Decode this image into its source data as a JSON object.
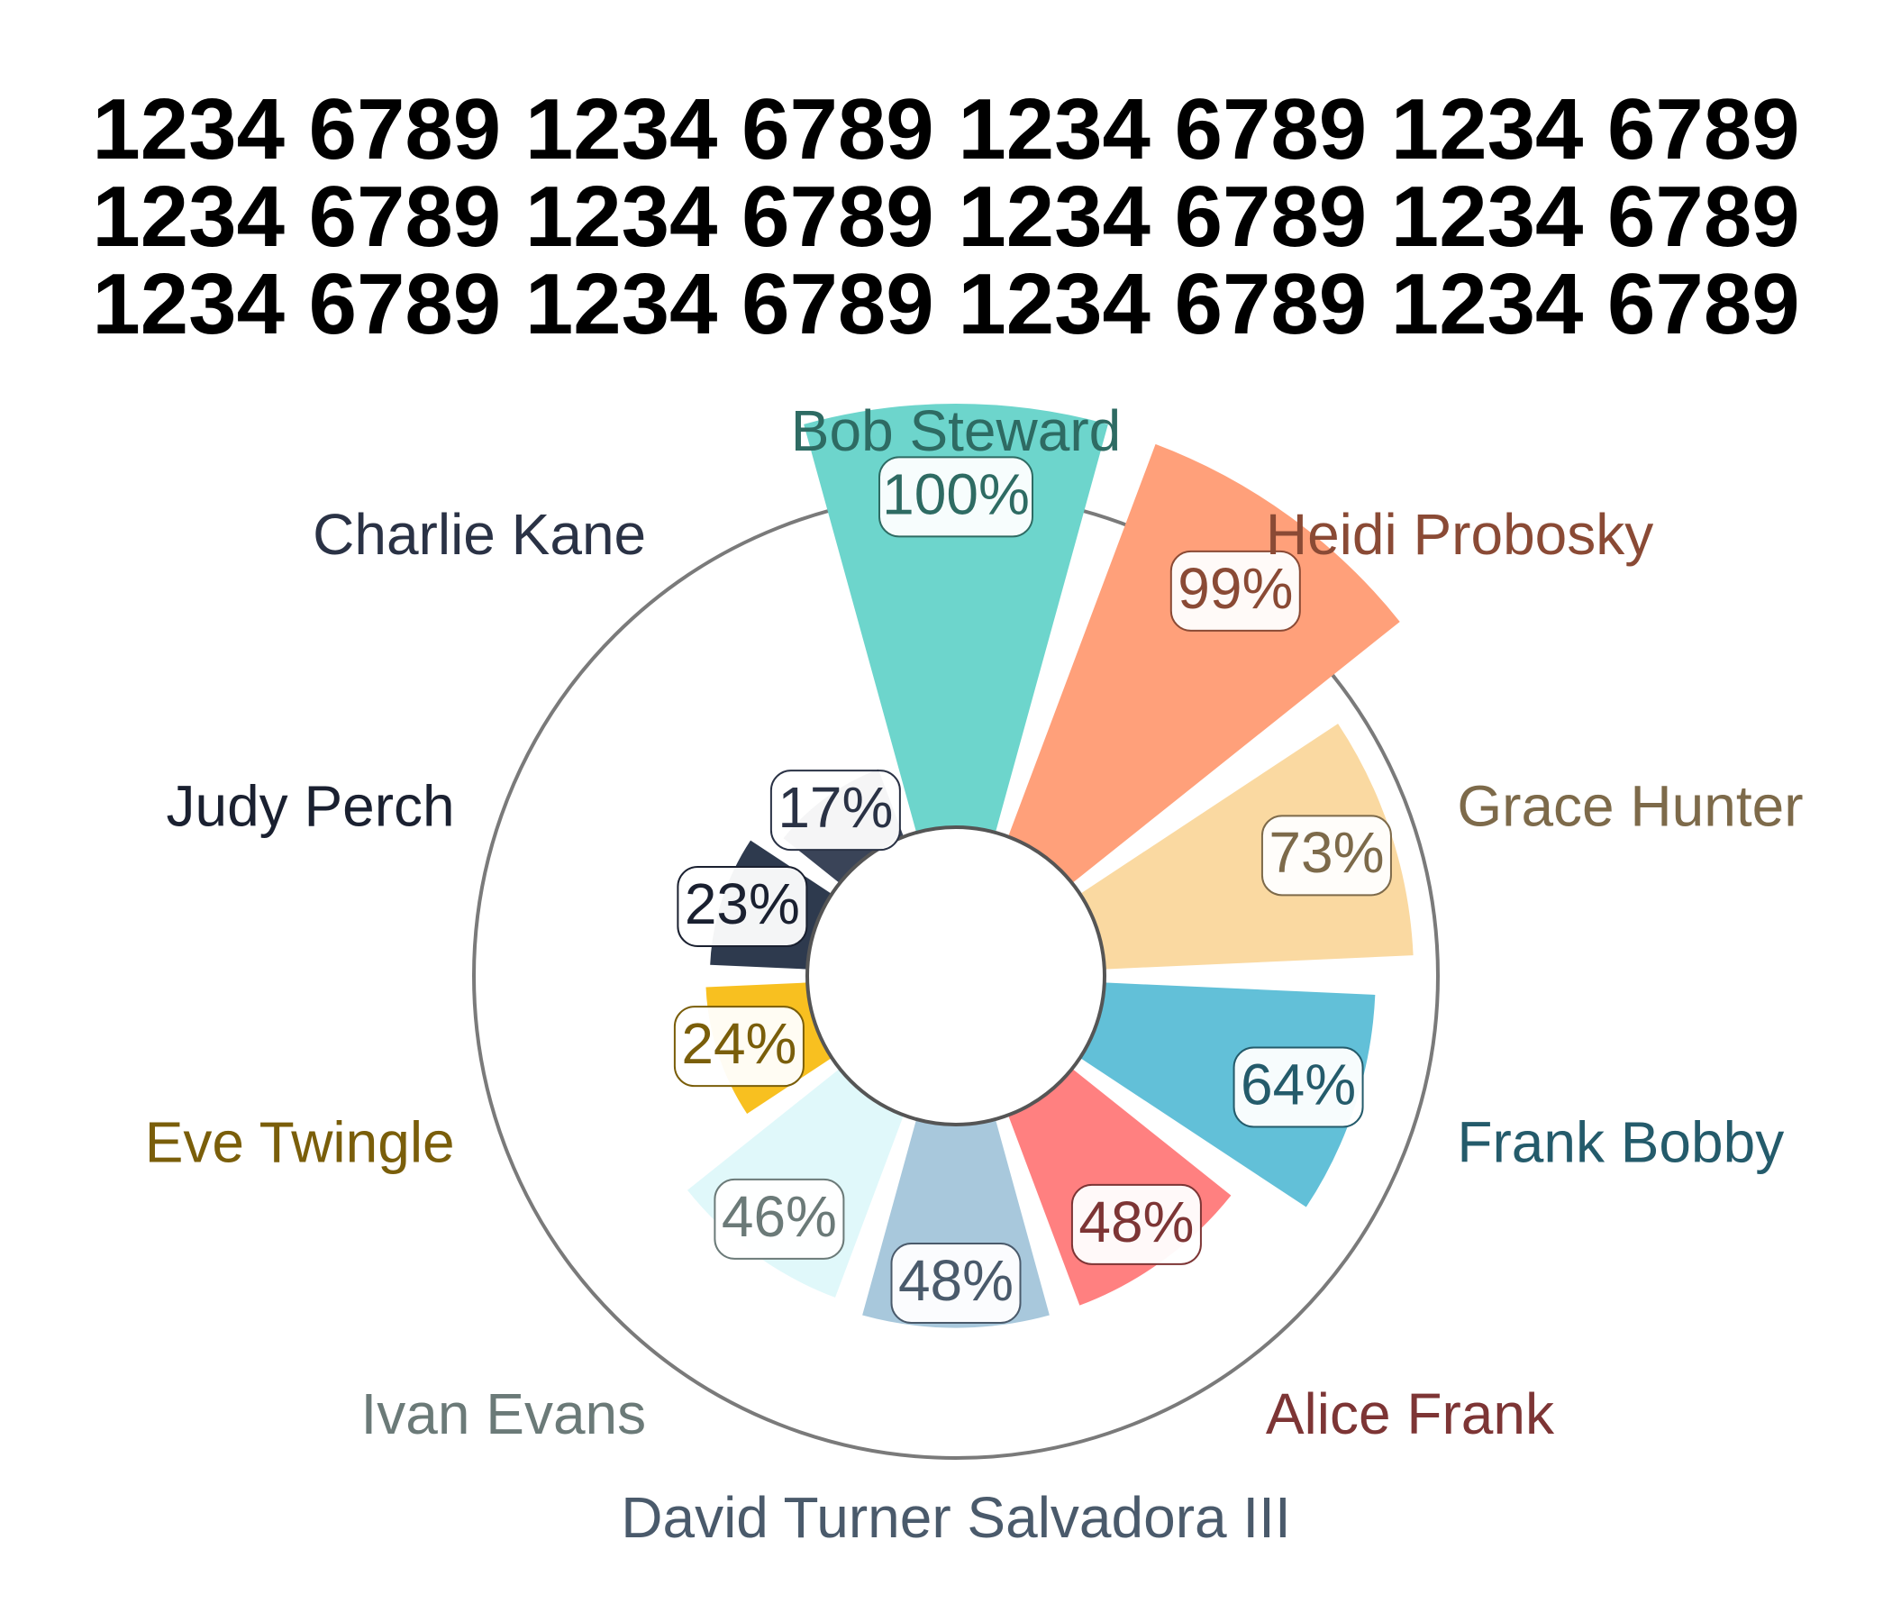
{
  "title_lines": [
    "1234 6789 1234 6789 1234 6789 1234 6789",
    "1234 6789 1234 6789 1234 6789 1234 6789",
    "1234 6789 1234 6789 1234 6789 1234 6789"
  ],
  "chart_data": {
    "type": "polar-bar",
    "title": "1234 6789 1234 6789 1234 6789 1234 6789 1234 6789 1234 6789 1234 6789 1234 6789 1234 6789 1234 6789 1234 6789 1234 6789",
    "unit": "%",
    "rlim": [
      0,
      100
    ],
    "direction": "clockwise from top",
    "categories": [
      "Bob Steward",
      "Heidi Probosky",
      "Grace Hunter",
      "Frank Bobby",
      "Alice Frank",
      "David Turner Salvadora III",
      "Ivan Evans",
      "Eve Twingle",
      "Judy Perch",
      "Charlie Kane"
    ],
    "values": [
      100,
      99,
      73,
      64,
      48,
      48,
      46,
      24,
      23,
      17
    ],
    "value_labels": [
      "100%",
      "99%",
      "73%",
      "64%",
      "48%",
      "48%",
      "46%",
      "24%",
      "23%",
      "17%"
    ],
    "bar_colors": [
      "#6dd5cc",
      "#ffa07a",
      "#fad9a1",
      "#62c0d8",
      "#ff8080",
      "#a8c8dc",
      "#e0f8fa",
      "#f8c020",
      "#2e3a4e",
      "#3a4458"
    ],
    "label_colors": [
      "#2e6b63",
      "#8a4a35",
      "#7d6a4a",
      "#245b6b",
      "#7d3535",
      "#4a5a6b",
      "#6b7a78",
      "#7a5e0a",
      "#1a2030",
      "#2a3245"
    ],
    "grid": false,
    "outer_ring": true
  }
}
